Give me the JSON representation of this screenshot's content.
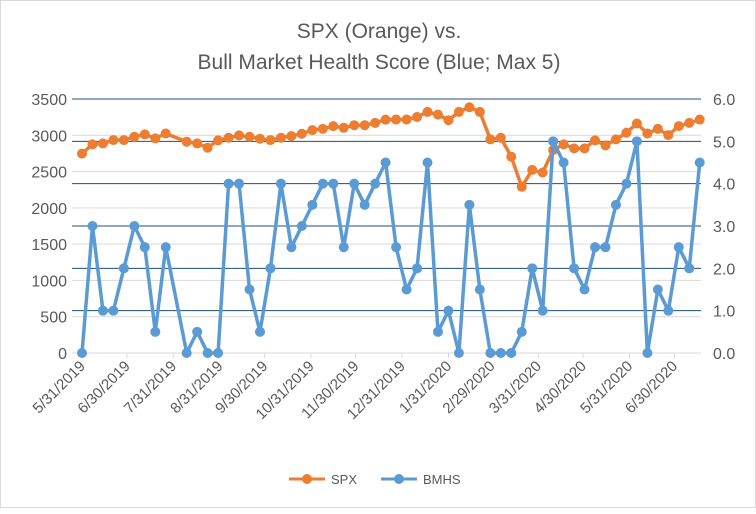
{
  "chart_data": {
    "type": "line",
    "title_lines": [
      "SPX (Orange) vs.",
      "Bull Market Health Score (Blue; Max 5)"
    ],
    "start_date": "2019-05-31",
    "interval_days": 7,
    "x_index": [
      0,
      1,
      2,
      3,
      4,
      5,
      6,
      7,
      8,
      10,
      11,
      12,
      13,
      14,
      15,
      16,
      17,
      18,
      19,
      20,
      21,
      22,
      23,
      24,
      25,
      26,
      27,
      28,
      29,
      30,
      31,
      32,
      33,
      34,
      35,
      36,
      37,
      38,
      39,
      40,
      41,
      42,
      43,
      44,
      45,
      46,
      47,
      48,
      49,
      50,
      51,
      52,
      53,
      54,
      55,
      56,
      57,
      58,
      59
    ],
    "series": [
      {
        "name": "SPX",
        "axis": "left",
        "color": "#ed7d31",
        "values": [
          2747,
          2875,
          2888,
          2934,
          2934,
          2980,
          3012,
          2957,
          3025,
          2911,
          2888,
          2829,
          2930,
          2966,
          2998,
          2980,
          2952,
          2934,
          2966,
          2989,
          3021,
          3071,
          3089,
          3126,
          3103,
          3139,
          3139,
          3171,
          3215,
          3217,
          3217,
          3252,
          3322,
          3285,
          3208,
          3322,
          3386,
          3322,
          2943,
          2966,
          2705,
          2290,
          2523,
          2487,
          2797,
          2875,
          2820,
          2820,
          2930,
          2861,
          2943,
          3035,
          3162,
          3025,
          3089,
          3003,
          3126,
          3171,
          3217
        ]
      },
      {
        "name": "BMHS",
        "axis": "right",
        "color": "#5b9bd5",
        "values": [
          0,
          3,
          1,
          1,
          2,
          3,
          2.5,
          0.5,
          2.5,
          0,
          0.5,
          0,
          0,
          4,
          4,
          1.5,
          0.5,
          2,
          4,
          2.5,
          3,
          3.5,
          4,
          4,
          2.5,
          4,
          3.5,
          4,
          4.5,
          2.5,
          1.5,
          2,
          4.5,
          0.5,
          1,
          0,
          3.5,
          1.5,
          0,
          0,
          0,
          0.5,
          2,
          1,
          5,
          4.5,
          2,
          1.5,
          2.5,
          2.5,
          3.5,
          4,
          5,
          0,
          1.5,
          1,
          2.5,
          2,
          4.5
        ]
      }
    ],
    "left_axis": {
      "range": [
        0,
        3500
      ],
      "ticks": [
        "0",
        "500",
        "1000",
        "1500",
        "2000",
        "2500",
        "3000",
        "3500"
      ]
    },
    "right_axis": {
      "range": [
        0,
        6
      ],
      "ticks": [
        "0.0",
        "1.0",
        "2.0",
        "3.0",
        "4.0",
        "5.0",
        "6.0"
      ]
    },
    "x_tick_labels": [
      "5/31/2019",
      "6/30/2019",
      "7/31/2019",
      "8/31/2019",
      "9/30/2019",
      "10/31/2019",
      "11/30/2019",
      "12/31/2019",
      "1/31/2020",
      "2/29/2020",
      "3/31/2020",
      "4/30/2020",
      "5/31/2020",
      "6/30/2020"
    ],
    "x_tick_dates": [
      "2019-05-31",
      "2019-06-30",
      "2019-07-31",
      "2019-08-31",
      "2019-09-30",
      "2019-10-31",
      "2019-11-30",
      "2019-12-31",
      "2020-01-31",
      "2020-02-29",
      "2020-03-31",
      "2020-04-30",
      "2020-05-31",
      "2020-06-30"
    ],
    "legend": {
      "position": "bottom",
      "entries": [
        "SPX",
        "BMHS"
      ]
    },
    "grid": true
  }
}
